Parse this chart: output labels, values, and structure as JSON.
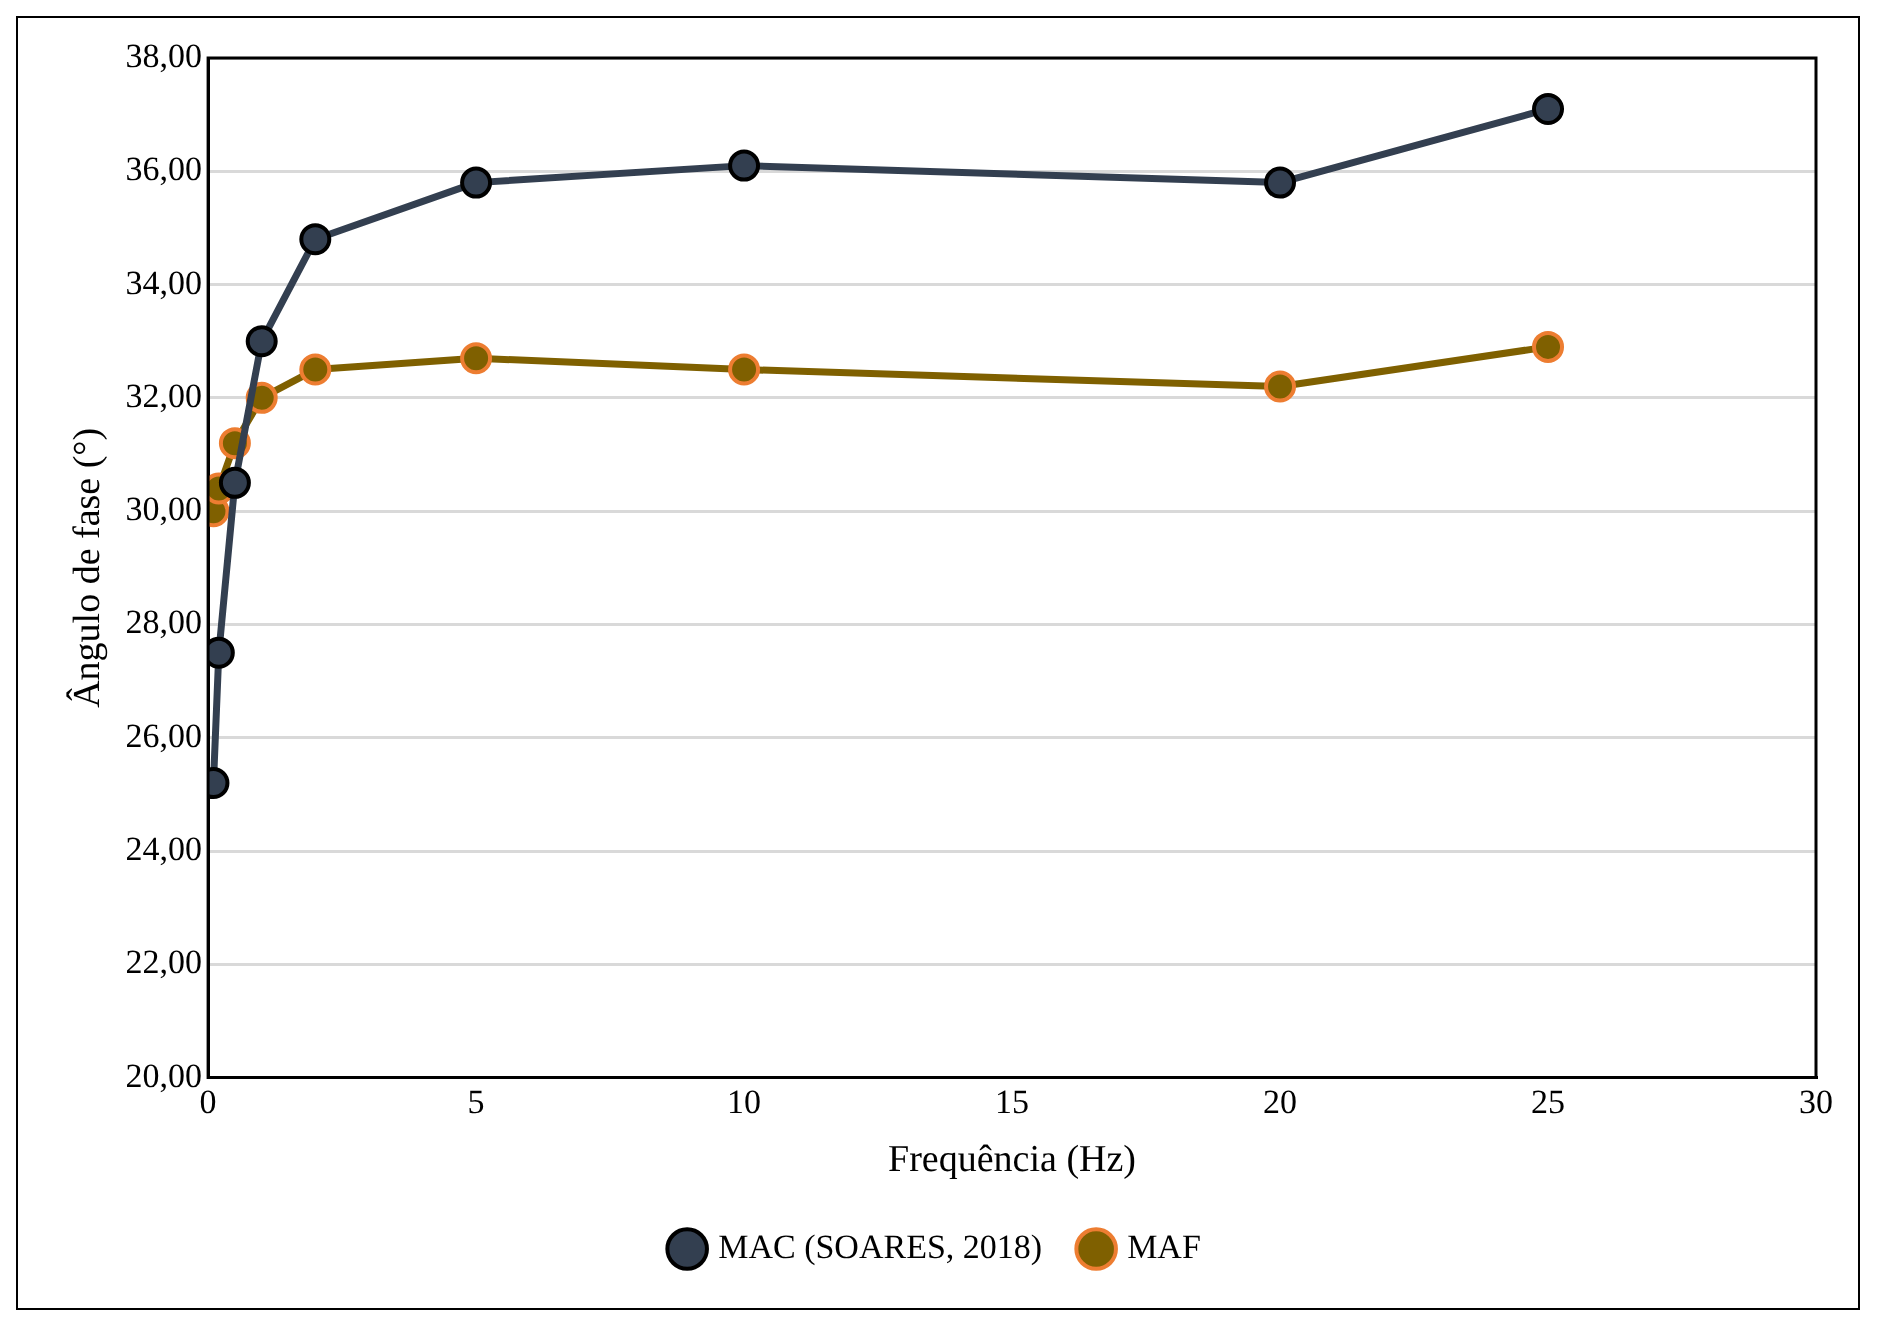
{
  "chart_data": {
    "type": "line",
    "xlabel": "Frequência (Hz)",
    "ylabel": "Ângulo de fase (°)",
    "xlim": [
      0,
      30
    ],
    "xticks": [
      0,
      5,
      10,
      15,
      20,
      25,
      30
    ],
    "ylim": [
      20,
      38
    ],
    "yticks": [
      {
        "value": 20,
        "label": "20,00"
      },
      {
        "value": 22,
        "label": "22,00"
      },
      {
        "value": 24,
        "label": "24,00"
      },
      {
        "value": 26,
        "label": "26,00"
      },
      {
        "value": 28,
        "label": "28,00"
      },
      {
        "value": 30,
        "label": "30,00"
      },
      {
        "value": 32,
        "label": "32,00"
      },
      {
        "value": 34,
        "label": "34,00"
      },
      {
        "value": 36,
        "label": "36,00"
      },
      {
        "value": 38,
        "label": "38,00"
      }
    ],
    "x": [
      0.1,
      0.2,
      0.5,
      1,
      2,
      5,
      10,
      20,
      25
    ],
    "series": [
      {
        "name": "MAC (SOARES, 2018)",
        "color": "#333f50",
        "values": [
          25.2,
          27.5,
          30.5,
          33.0,
          34.8,
          35.8,
          36.1,
          35.8,
          37.1
        ]
      },
      {
        "name": "MAF",
        "color": "#7f6000",
        "values": [
          30.0,
          30.4,
          31.2,
          32.0,
          32.5,
          32.7,
          32.5,
          32.2,
          32.9
        ]
      }
    ],
    "grid": "y",
    "legend": "bottom",
    "marker": "circle",
    "line_style": "solid"
  }
}
